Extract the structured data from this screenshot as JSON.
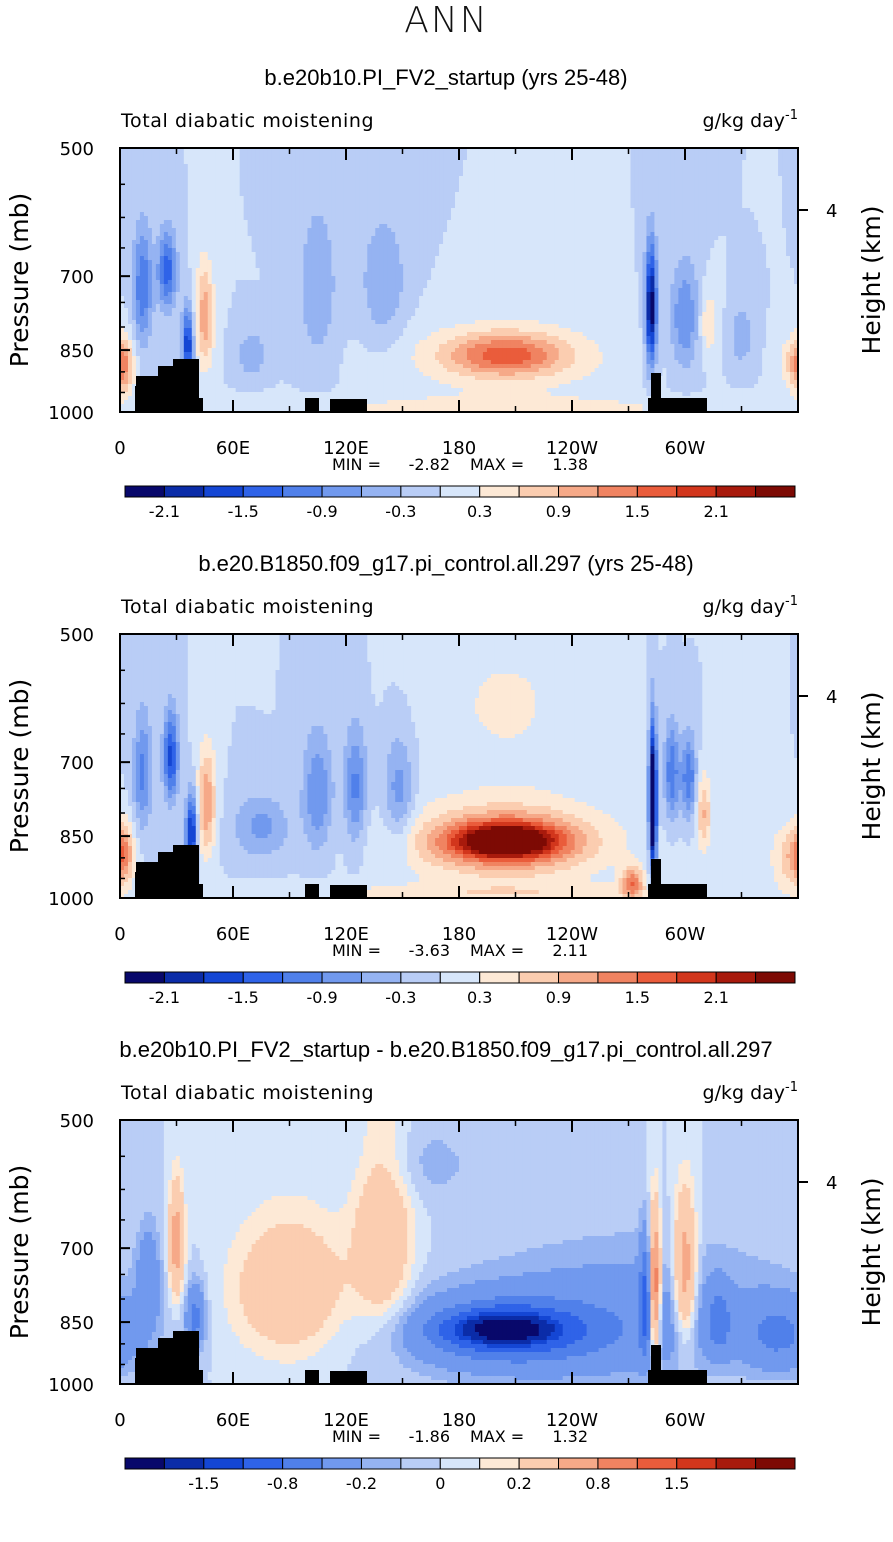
{
  "page_title": "ANN",
  "chart_data": [
    {
      "type": "heatmap",
      "title": "b.e20b10.PI_FV2_startup (yrs 25-48)",
      "left_label": "Total diabatic moistening",
      "units": "g/kg day",
      "units_exp": "-1",
      "ylabel": "Pressure (mb)",
      "y2label": "Height (km)",
      "y_ticks": [
        "500",
        "700",
        "850",
        "1000"
      ],
      "y_tick_values": [
        500,
        700,
        850,
        1000
      ],
      "y2_tick": "4",
      "x_ticks": [
        "0",
        "60E",
        "120E",
        "180",
        "120W",
        "60W"
      ],
      "x_tick_values": [
        0,
        60,
        120,
        180,
        240,
        300
      ],
      "xlim": [
        0,
        360
      ],
      "min_label": "MIN =",
      "min_value": "-2.82",
      "max_label": "MAX =",
      "max_value": "1.38",
      "colorbar_labels": [
        "-2.1",
        "-1.5",
        "-0.9",
        "-0.3",
        "0.3",
        "0.9",
        "1.5",
        "2.1"
      ],
      "colorbar_levels": [
        -2.4,
        -2.1,
        -1.8,
        -1.5,
        -1.2,
        -0.9,
        -0.6,
        -0.3,
        0,
        0.3,
        0.6,
        0.9,
        1.2,
        1.5,
        1.8,
        2.1,
        2.4
      ],
      "features": [
        {
          "lon": 205,
          "p": 860,
          "dlon": 30,
          "dp": 45,
          "v": 1.2
        },
        {
          "lon": 205,
          "p": 870,
          "dlon": 55,
          "dp": 90,
          "v": 0.55
        },
        {
          "lon": 12,
          "p": 720,
          "dlon": 5,
          "dp": 110,
          "v": -1.2
        },
        {
          "lon": 25,
          "p": 690,
          "dlon": 5,
          "dp": 70,
          "v": -1.4
        },
        {
          "lon": 36,
          "p": 840,
          "dlon": 3,
          "dp": 80,
          "v": -1.8
        },
        {
          "lon": 45,
          "p": 780,
          "dlon": 5,
          "dp": 110,
          "v": 1.1
        },
        {
          "lon": 2,
          "p": 890,
          "dlon": 5,
          "dp": 70,
          "v": 0.9
        },
        {
          "lon": 70,
          "p": 860,
          "dlon": 8,
          "dp": 50,
          "v": -0.6
        },
        {
          "lon": 105,
          "p": 720,
          "dlon": 10,
          "dp": 150,
          "v": -0.6
        },
        {
          "lon": 140,
          "p": 710,
          "dlon": 12,
          "dp": 120,
          "v": -0.6
        },
        {
          "lon": 282,
          "p": 760,
          "dlon": 3,
          "dp": 120,
          "v": -2.4
        },
        {
          "lon": 300,
          "p": 780,
          "dlon": 8,
          "dp": 110,
          "v": -0.9
        },
        {
          "lon": 312,
          "p": 790,
          "dlon": 5,
          "dp": 70,
          "v": 0.6
        },
        {
          "lon": 330,
          "p": 820,
          "dlon": 6,
          "dp": 60,
          "v": -0.6
        },
        {
          "lon": 358,
          "p": 880,
          "dlon": 8,
          "dp": 60,
          "v": 0.7
        },
        {
          "lon": 200,
          "p": 990,
          "dlon": 120,
          "dp": 30,
          "v": 0.45
        }
      ]
    },
    {
      "type": "heatmap",
      "title": "b.e20.B1850.f09_g17.pi_control.all.297 (yrs 25-48)",
      "left_label": "Total diabatic moistening",
      "units": "g/kg day",
      "units_exp": "-1",
      "ylabel": "Pressure (mb)",
      "y2label": "Height (km)",
      "y_ticks": [
        "500",
        "700",
        "850",
        "1000"
      ],
      "y_tick_values": [
        500,
        700,
        850,
        1000
      ],
      "y2_tick": "4",
      "x_ticks": [
        "0",
        "60E",
        "120E",
        "180",
        "120W",
        "60W"
      ],
      "x_tick_values": [
        0,
        60,
        120,
        180,
        240,
        300
      ],
      "xlim": [
        0,
        360
      ],
      "min_label": "MIN =",
      "min_value": "-3.63",
      "max_label": "MAX =",
      "max_value": "2.11",
      "colorbar_labels": [
        "-2.1",
        "-1.5",
        "-0.9",
        "-0.3",
        "0.3",
        "0.9",
        "1.5",
        "2.1"
      ],
      "colorbar_levels": [
        -2.4,
        -2.1,
        -1.8,
        -1.5,
        -1.2,
        -0.9,
        -0.6,
        -0.3,
        0,
        0.3,
        0.6,
        0.9,
        1.2,
        1.5,
        1.8,
        2.1,
        2.4
      ],
      "features": [
        {
          "lon": 205,
          "p": 860,
          "dlon": 25,
          "dp": 35,
          "v": 2.0
        },
        {
          "lon": 205,
          "p": 865,
          "dlon": 42,
          "dp": 65,
          "v": 1.3
        },
        {
          "lon": 205,
          "p": 860,
          "dlon": 60,
          "dp": 110,
          "v": 0.55
        },
        {
          "lon": 205,
          "p": 600,
          "dlon": 40,
          "dp": 120,
          "v": 0.35
        },
        {
          "lon": 12,
          "p": 720,
          "dlon": 5,
          "dp": 110,
          "v": -1.0
        },
        {
          "lon": 27,
          "p": 690,
          "dlon": 4,
          "dp": 80,
          "v": -1.6
        },
        {
          "lon": 38,
          "p": 840,
          "dlon": 3,
          "dp": 80,
          "v": -2.0
        },
        {
          "lon": 46,
          "p": 780,
          "dlon": 5,
          "dp": 110,
          "v": 1.2
        },
        {
          "lon": 2,
          "p": 890,
          "dlon": 5,
          "dp": 70,
          "v": 1.0
        },
        {
          "lon": 75,
          "p": 830,
          "dlon": 15,
          "dp": 70,
          "v": -0.7
        },
        {
          "lon": 105,
          "p": 760,
          "dlon": 8,
          "dp": 120,
          "v": -0.9
        },
        {
          "lon": 125,
          "p": 750,
          "dlon": 6,
          "dp": 120,
          "v": -1.0
        },
        {
          "lon": 148,
          "p": 760,
          "dlon": 8,
          "dp": 110,
          "v": -0.8
        },
        {
          "lon": 283,
          "p": 780,
          "dlon": 2,
          "dp": 140,
          "v": -3.4
        },
        {
          "lon": 293,
          "p": 720,
          "dlon": 4,
          "dp": 90,
          "v": -1.2
        },
        {
          "lon": 302,
          "p": 730,
          "dlon": 4,
          "dp": 80,
          "v": -1.2
        },
        {
          "lon": 310,
          "p": 800,
          "dlon": 4,
          "dp": 80,
          "v": 0.9
        },
        {
          "lon": 272,
          "p": 960,
          "dlon": 6,
          "dp": 40,
          "v": 1.3
        },
        {
          "lon": 356,
          "p": 900,
          "dlon": 10,
          "dp": 80,
          "v": 0.8
        },
        {
          "lon": 200,
          "p": 990,
          "dlon": 120,
          "dp": 30,
          "v": 0.45
        }
      ]
    },
    {
      "type": "heatmap",
      "title": "b.e20b10.PI_FV2_startup - b.e20.B1850.f09_g17.pi_control.all.297",
      "left_label": "Total diabatic moistening",
      "units": "g/kg day",
      "units_exp": "-1",
      "ylabel": "Pressure (mb)",
      "y2label": "Height (km)",
      "y_ticks": [
        "500",
        "700",
        "850",
        "1000"
      ],
      "y_tick_values": [
        500,
        700,
        850,
        1000
      ],
      "y2_tick": "4",
      "x_ticks": [
        "0",
        "60E",
        "120E",
        "180",
        "120W",
        "60W"
      ],
      "x_tick_values": [
        0,
        60,
        120,
        180,
        240,
        300
      ],
      "xlim": [
        0,
        360
      ],
      "min_label": "MIN =",
      "min_value": "-1.86",
      "max_label": "MAX =",
      "max_value": "1.32",
      "colorbar_labels": [
        "-1.5",
        "-0.8",
        "-0.2",
        "0",
        "0.2",
        "0.8",
        "1.5"
      ],
      "colorbar_levels": [
        -2.5,
        -2.0,
        -1.5,
        -1.2,
        -0.8,
        -0.5,
        -0.2,
        -0.1,
        0,
        0.1,
        0.2,
        0.5,
        0.8,
        1.2,
        1.5,
        2.0,
        2.5
      ],
      "features": [
        {
          "lon": 205,
          "p": 865,
          "dlon": 22,
          "dp": 30,
          "v": -1.6
        },
        {
          "lon": 205,
          "p": 870,
          "dlon": 40,
          "dp": 60,
          "v": -0.9
        },
        {
          "lon": 215,
          "p": 880,
          "dlon": 70,
          "dp": 110,
          "v": -0.35
        },
        {
          "lon": 280,
          "p": 820,
          "dlon": 80,
          "dp": 150,
          "v": -0.25
        },
        {
          "lon": 90,
          "p": 780,
          "dlon": 30,
          "dp": 140,
          "v": 0.45
        },
        {
          "lon": 140,
          "p": 680,
          "dlon": 15,
          "dp": 180,
          "v": 0.45
        },
        {
          "lon": 30,
          "p": 690,
          "dlon": 4,
          "dp": 100,
          "v": 0.7
        },
        {
          "lon": 15,
          "p": 760,
          "dlon": 6,
          "dp": 100,
          "v": -0.4
        },
        {
          "lon": 40,
          "p": 840,
          "dlon": 5,
          "dp": 70,
          "v": -0.6
        },
        {
          "lon": 279,
          "p": 800,
          "dlon": 3,
          "dp": 120,
          "v": -0.7
        },
        {
          "lon": 284,
          "p": 780,
          "dlon": 3,
          "dp": 140,
          "v": 1.2
        },
        {
          "lon": 300,
          "p": 750,
          "dlon": 6,
          "dp": 140,
          "v": 0.8
        },
        {
          "lon": 318,
          "p": 850,
          "dlon": 6,
          "dp": 70,
          "v": -0.5
        },
        {
          "lon": 350,
          "p": 880,
          "dlon": 20,
          "dp": 80,
          "v": -0.5
        },
        {
          "lon": 160,
          "p": 560,
          "dlon": 30,
          "dp": 60,
          "v": -0.15
        }
      ]
    }
  ]
}
